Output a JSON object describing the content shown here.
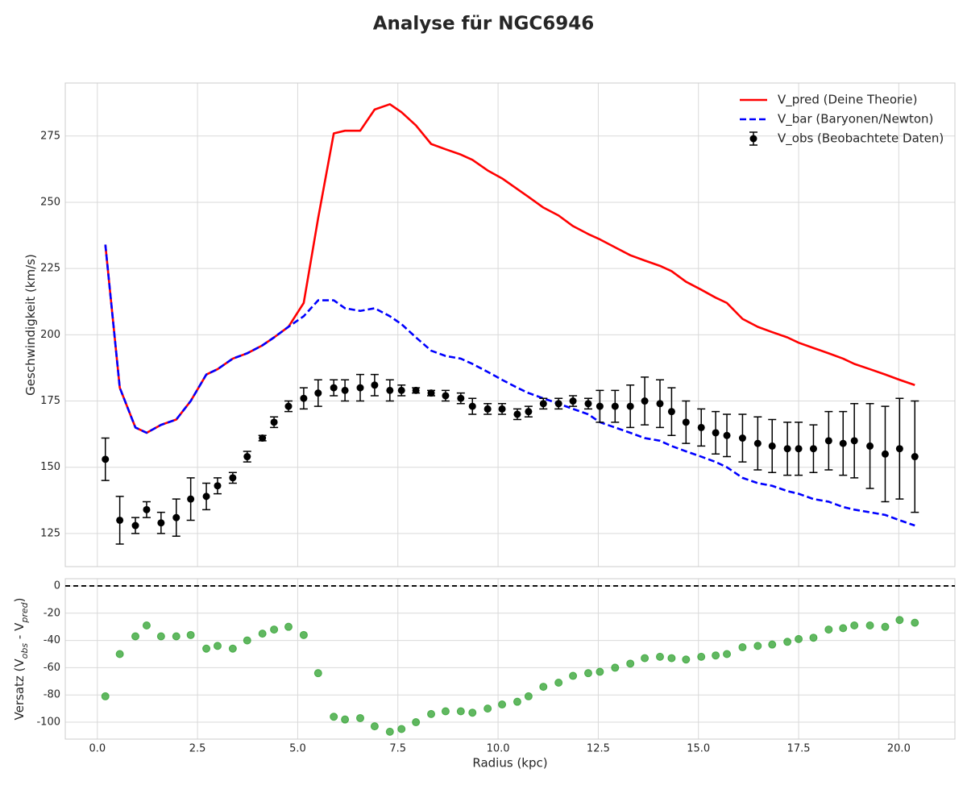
{
  "title": "Analyse für NGC6946",
  "chart_data": [
    {
      "type": "line",
      "ylabel": "Geschwindigkeit (km/s)",
      "x": [
        0.2,
        0.56,
        0.95,
        1.23,
        1.59,
        1.97,
        2.33,
        2.72,
        3.0,
        3.38,
        3.74,
        4.12,
        4.41,
        4.77,
        5.15,
        5.51,
        5.9,
        6.18,
        6.56,
        6.92,
        7.3,
        7.59,
        7.95,
        8.33,
        8.69,
        9.07,
        9.36,
        9.74,
        10.1,
        10.48,
        10.76,
        11.13,
        11.51,
        11.87,
        12.25,
        12.54,
        12.92,
        13.3,
        13.66,
        14.04,
        14.33,
        14.69,
        15.07,
        15.43,
        15.71,
        16.1,
        16.48,
        16.84,
        17.22,
        17.5,
        17.87,
        18.25,
        18.61,
        18.89,
        19.28,
        19.66,
        20.02,
        20.4
      ],
      "series": [
        {
          "name": "V_pred (Deine Theorie)",
          "style": "line",
          "linestyle": "solid",
          "color": "#ff0000",
          "values": [
            234,
            180,
            165,
            163,
            166,
            168,
            175,
            185,
            187,
            191,
            193,
            196,
            199,
            203,
            212,
            244,
            276,
            277,
            277,
            285,
            287,
            284,
            279,
            272,
            270,
            268,
            266,
            262,
            259,
            255,
            252,
            248,
            245,
            241,
            238,
            236,
            233,
            230,
            228,
            226,
            224,
            220,
            217,
            214,
            212,
            206,
            203,
            201,
            199,
            197,
            195,
            193,
            191,
            189,
            187,
            185,
            183,
            181
          ]
        },
        {
          "name": "V_bar (Baryonen/Newton)",
          "style": "line",
          "linestyle": "dashed",
          "color": "#0000ff",
          "values": [
            234,
            180,
            165,
            163,
            166,
            168,
            175,
            185,
            187,
            191,
            193,
            196,
            199,
            203,
            207,
            213,
            213,
            210,
            209,
            210,
            207,
            204,
            199,
            194,
            192,
            191,
            189,
            186,
            183,
            180,
            178,
            176,
            174,
            172,
            170,
            167,
            165,
            163,
            161,
            160,
            158,
            156,
            154,
            152,
            150,
            146,
            144,
            143,
            141,
            140,
            138,
            137,
            135,
            134,
            133,
            132,
            130,
            128
          ]
        },
        {
          "name": "V_obs (Beobachtete Daten)",
          "style": "errorbar",
          "color": "#000000",
          "values": [
            153,
            130,
            128,
            134,
            129,
            131,
            138,
            139,
            143,
            146,
            154,
            161,
            167,
            173,
            176,
            178,
            180,
            179,
            180,
            181,
            179,
            179,
            179,
            178,
            177,
            176,
            173,
            172,
            172,
            170,
            171,
            174,
            174,
            175,
            174,
            173,
            173,
            173,
            175,
            174,
            171,
            167,
            165,
            163,
            162,
            161,
            159,
            158,
            157,
            157,
            157,
            160,
            159,
            160,
            158,
            155,
            157,
            154
          ],
          "errors": [
            8,
            9,
            3,
            3,
            4,
            7,
            8,
            5,
            3,
            2,
            2,
            1,
            2,
            2,
            4,
            5,
            3,
            4,
            5,
            4,
            4,
            2,
            1,
            1,
            2,
            2,
            3,
            2,
            2,
            2,
            2,
            2,
            2,
            2,
            2,
            6,
            6,
            8,
            9,
            9,
            9,
            8,
            7,
            8,
            8,
            9,
            10,
            10,
            10,
            10,
            9,
            11,
            12,
            14,
            16,
            18,
            19,
            21
          ]
        }
      ],
      "xlim": [
        -0.8,
        21.4
      ],
      "ylim": [
        112.5,
        295
      ],
      "xticks": [
        0,
        2.5,
        5,
        7.5,
        10,
        12.5,
        15,
        17.5,
        20
      ],
      "xtick_labels": false,
      "yticks": [
        125,
        150,
        175,
        200,
        225,
        250,
        275
      ],
      "grid": true,
      "legend": "upper right"
    },
    {
      "type": "scatter",
      "xlabel": "Radius (kpc)",
      "ylabel": "Versatz (V_obs - V_pred)",
      "x": [
        0.2,
        0.56,
        0.95,
        1.23,
        1.59,
        1.97,
        2.33,
        2.72,
        3.0,
        3.38,
        3.74,
        4.12,
        4.41,
        4.77,
        5.15,
        5.51,
        5.9,
        6.18,
        6.56,
        6.92,
        7.3,
        7.59,
        7.95,
        8.33,
        8.69,
        9.07,
        9.36,
        9.74,
        10.1,
        10.48,
        10.76,
        11.13,
        11.51,
        11.87,
        12.25,
        12.54,
        12.92,
        13.3,
        13.66,
        14.04,
        14.33,
        14.69,
        15.07,
        15.43,
        15.71,
        16.1,
        16.48,
        16.84,
        17.22,
        17.5,
        17.87,
        18.25,
        18.61,
        18.89,
        19.28,
        19.66,
        20.02,
        20.4
      ],
      "values": [
        -81,
        -50,
        -37,
        -29,
        -37,
        -37,
        -36,
        -46,
        -44,
        -46,
        -40,
        -35,
        -32,
        -30,
        -36,
        -64,
        -96,
        -98,
        -97,
        -103,
        -107,
        -105,
        -100,
        -94,
        -92,
        -92,
        -93,
        -90,
        -87,
        -85,
        -81,
        -74,
        -71,
        -66,
        -64,
        -63,
        -60,
        -57,
        -53,
        -52,
        -53,
        -54,
        -52,
        -51,
        -50,
        -45,
        -44,
        -43,
        -41,
        -39,
        -38,
        -32,
        -31,
        -29,
        -29,
        -30,
        -25,
        -27
      ],
      "color": "#2ca02c",
      "alpha": 0.75,
      "hline": {
        "value": 0,
        "color": "#000000",
        "linestyle": "dashed"
      },
      "xlim": [
        -0.8,
        21.4
      ],
      "ylim": [
        -112.4,
        5.3
      ],
      "xticks": [
        {
          "value": 0,
          "label": "0.0"
        },
        2.5,
        {
          "value": 5,
          "label": "5.0"
        },
        7.5,
        {
          "value": 10,
          "label": "10.0"
        },
        12.5,
        {
          "value": 15,
          "label": "15.0"
        },
        17.5,
        {
          "value": 20,
          "label": "20.0"
        }
      ],
      "yticks": [
        -100,
        -80,
        -60,
        -40,
        -20,
        0
      ],
      "grid": true
    }
  ]
}
